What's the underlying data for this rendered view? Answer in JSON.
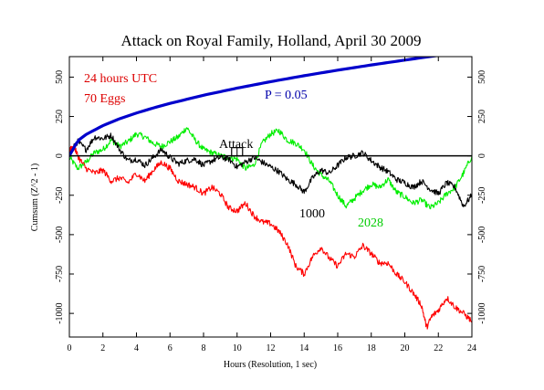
{
  "chart_data": {
    "type": "line",
    "title": "Attack on Royal Family, Holland, April 30 2009",
    "xlabel": "Hours (Resolution, 1 sec)",
    "ylabel": "Cumsum (Z^2 - 1)",
    "xlim": [
      0,
      24
    ],
    "ylim": [
      -1150,
      630
    ],
    "x_ticks": [
      0,
      2,
      4,
      6,
      8,
      10,
      12,
      14,
      16,
      18,
      20,
      22,
      24
    ],
    "y_ticks": [
      -1000,
      -750,
      -500,
      -250,
      0,
      250,
      500
    ],
    "grid": false,
    "annotations": {
      "time_label": "24 hours UTC",
      "eggs_label": "70 Eggs",
      "event_label": "Attack",
      "event_x": 10
    },
    "colors": {
      "background": "#ffffff",
      "main": "#ff0000",
      "probability": "#0000cc",
      "series_1000": "#000000",
      "series_2028": "#00ee00",
      "text_red": "#dd0000",
      "text_blue": "#0000aa",
      "text_green": "#00cc00"
    },
    "series": [
      {
        "name": "P = 0.05",
        "color": "#0000cc",
        "x": [
          0,
          0.5,
          1,
          2,
          3,
          4,
          5,
          6,
          8,
          10,
          12,
          14,
          16,
          18,
          20,
          22,
          24
        ],
        "y": [
          0,
          96,
          136,
          192,
          236,
          272,
          304,
          333,
          385,
          430,
          471,
          509,
          544,
          577,
          608,
          638,
          666
        ]
      },
      {
        "name": "",
        "color": "#ff0000",
        "x": [
          0,
          0.3,
          0.6,
          1,
          1.5,
          2,
          2.5,
          3,
          3.5,
          4,
          4.5,
          5,
          5.5,
          6,
          6.5,
          7,
          7.5,
          8,
          8.5,
          9,
          9.5,
          10,
          10.5,
          11,
          11.5,
          12,
          12.5,
          13,
          13.5,
          14,
          14.5,
          15,
          15.5,
          16,
          16.5,
          17,
          17.5,
          18,
          18.5,
          19,
          19.5,
          20,
          20.5,
          21,
          21.3,
          21.6,
          22,
          22.5,
          23,
          23.5,
          24
        ],
        "y": [
          40,
          50,
          -20,
          -80,
          -110,
          -90,
          -160,
          -140,
          -170,
          -110,
          -160,
          -90,
          -40,
          -80,
          -160,
          -180,
          -200,
          -240,
          -200,
          -240,
          -330,
          -350,
          -300,
          -380,
          -420,
          -430,
          -480,
          -560,
          -700,
          -750,
          -640,
          -580,
          -650,
          -700,
          -620,
          -640,
          -570,
          -620,
          -680,
          -680,
          -750,
          -800,
          -870,
          -950,
          -1090,
          -1020,
          -980,
          -900,
          -960,
          -1000,
          -1050
        ]
      },
      {
        "name": "1000",
        "color": "#000000",
        "x": [
          0,
          0.5,
          1,
          1.5,
          2,
          2.5,
          3,
          3.5,
          4,
          4.5,
          5,
          5.5,
          6,
          6.5,
          7,
          7.5,
          8,
          8.5,
          9,
          9.5,
          10,
          10.5,
          11,
          11.5,
          12,
          12.5,
          13,
          13.5,
          14,
          14.5,
          15,
          15.5,
          16,
          16.5,
          17,
          17.5,
          18,
          18.5,
          19,
          19.5,
          20,
          20.5,
          21,
          21.5,
          22,
          22.5,
          23,
          23.5,
          24
        ],
        "y": [
          20,
          90,
          40,
          120,
          110,
          130,
          40,
          -30,
          -20,
          -60,
          -10,
          40,
          -10,
          -50,
          -30,
          -20,
          -60,
          -30,
          -10,
          -20,
          -70,
          -40,
          -10,
          -40,
          -70,
          -100,
          -150,
          -180,
          -230,
          -140,
          -90,
          -110,
          -60,
          -10,
          0,
          20,
          -30,
          -70,
          -100,
          -150,
          -170,
          -200,
          -160,
          -210,
          -240,
          -170,
          -200,
          -320,
          -250
        ]
      },
      {
        "name": "2028",
        "color": "#00ee00",
        "x": [
          0,
          0.5,
          1,
          1.5,
          2,
          2.5,
          3,
          3.5,
          4,
          4.5,
          5,
          5.5,
          6,
          6.5,
          7,
          7.5,
          8,
          8.5,
          9,
          9.5,
          10,
          10.5,
          11,
          11.5,
          12,
          12.5,
          13,
          13.5,
          14,
          14.5,
          15,
          15.5,
          16,
          16.5,
          17,
          17.5,
          18,
          18.5,
          19,
          19.5,
          20,
          20.5,
          21,
          21.5,
          22,
          22.5,
          23,
          23.5,
          24
        ],
        "y": [
          -10,
          -80,
          -40,
          20,
          40,
          100,
          60,
          90,
          140,
          120,
          80,
          60,
          90,
          120,
          180,
          100,
          40,
          20,
          0,
          -10,
          -20,
          -80,
          -60,
          80,
          140,
          160,
          100,
          80,
          40,
          -60,
          -120,
          -160,
          -250,
          -320,
          -270,
          -220,
          -180,
          -200,
          -150,
          -230,
          -260,
          -300,
          -280,
          -330,
          -300,
          -240,
          -200,
          -110,
          0
        ]
      }
    ]
  }
}
